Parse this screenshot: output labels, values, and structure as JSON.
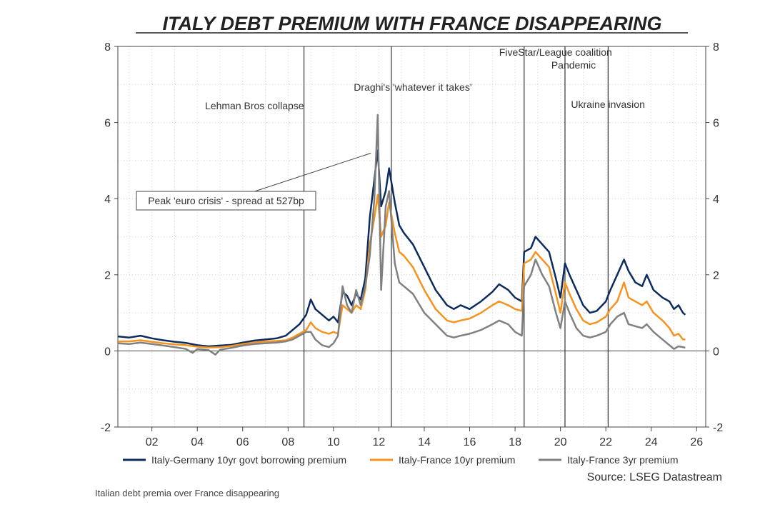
{
  "chart_data": {
    "type": "line",
    "title": "ITALY DEBT PREMIUM WITH FRANCE DISAPPEARING",
    "source": "Source: LSEG Datastream",
    "ylim": [
      -2,
      8
    ],
    "yticks": [
      -2,
      0,
      2,
      4,
      6,
      8
    ],
    "xlim": [
      2000.5,
      2026.4
    ],
    "xticks": [
      2002,
      2004,
      2006,
      2008,
      2010,
      2012,
      2014,
      2016,
      2018,
      2020,
      2022,
      2024,
      2026
    ],
    "xtick_labels": [
      "02",
      "04",
      "06",
      "08",
      "10",
      "12",
      "14",
      "16",
      "18",
      "20",
      "22",
      "24",
      "26"
    ],
    "grid": true,
    "events": [
      {
        "label": "Lehman Bros collapse",
        "x": 2008.7
      },
      {
        "label": "Draghi's 'whatever it takes'",
        "x": 2012.55
      },
      {
        "label": "FiveStar/League coalition",
        "x": 2018.4
      },
      {
        "label": "Pandemic",
        "x": 2020.2
      },
      {
        "label": "Ukraine invasion",
        "x": 2022.1
      }
    ],
    "callout": {
      "label": "Peak 'euro crisis' - spread at 527bp",
      "x": 2011.9,
      "y": 5.27
    },
    "series": [
      {
        "name": "Italy-Germany 10yr govt borrowing premium",
        "color": "#0d2c5e",
        "points": [
          [
            2000.5,
            0.38
          ],
          [
            2001.0,
            0.35
          ],
          [
            2001.5,
            0.4
          ],
          [
            2002.0,
            0.33
          ],
          [
            2002.5,
            0.28
          ],
          [
            2003.0,
            0.24
          ],
          [
            2003.5,
            0.21
          ],
          [
            2004.0,
            0.15
          ],
          [
            2004.5,
            0.12
          ],
          [
            2005.0,
            0.14
          ],
          [
            2005.5,
            0.16
          ],
          [
            2006.0,
            0.22
          ],
          [
            2006.5,
            0.27
          ],
          [
            2007.0,
            0.3
          ],
          [
            2007.5,
            0.33
          ],
          [
            2007.9,
            0.4
          ],
          [
            2008.2,
            0.55
          ],
          [
            2008.5,
            0.7
          ],
          [
            2008.8,
            0.95
          ],
          [
            2009.0,
            1.35
          ],
          [
            2009.2,
            1.1
          ],
          [
            2009.5,
            0.95
          ],
          [
            2009.8,
            0.8
          ],
          [
            2010.0,
            0.9
          ],
          [
            2010.2,
            0.75
          ],
          [
            2010.4,
            1.55
          ],
          [
            2010.6,
            1.45
          ],
          [
            2010.8,
            1.2
          ],
          [
            2011.0,
            1.5
          ],
          [
            2011.2,
            1.35
          ],
          [
            2011.4,
            1.9
          ],
          [
            2011.6,
            3.5
          ],
          [
            2011.8,
            4.5
          ],
          [
            2011.95,
            5.27
          ],
          [
            2012.1,
            3.8
          ],
          [
            2012.3,
            4.2
          ],
          [
            2012.45,
            4.8
          ],
          [
            2012.7,
            3.9
          ],
          [
            2012.9,
            3.3
          ],
          [
            2013.1,
            3.1
          ],
          [
            2013.5,
            2.8
          ],
          [
            2014.0,
            2.2
          ],
          [
            2014.5,
            1.6
          ],
          [
            2015.0,
            1.2
          ],
          [
            2015.3,
            1.1
          ],
          [
            2015.6,
            1.2
          ],
          [
            2016.0,
            1.1
          ],
          [
            2016.5,
            1.3
          ],
          [
            2017.0,
            1.55
          ],
          [
            2017.3,
            1.75
          ],
          [
            2017.7,
            1.6
          ],
          [
            2018.0,
            1.4
          ],
          [
            2018.3,
            1.3
          ],
          [
            2018.4,
            2.6
          ],
          [
            2018.7,
            2.7
          ],
          [
            2018.9,
            3.0
          ],
          [
            2019.2,
            2.8
          ],
          [
            2019.5,
            2.6
          ],
          [
            2019.8,
            1.9
          ],
          [
            2020.0,
            1.4
          ],
          [
            2020.2,
            2.3
          ],
          [
            2020.4,
            2.0
          ],
          [
            2020.7,
            1.6
          ],
          [
            2021.0,
            1.2
          ],
          [
            2021.3,
            1.0
          ],
          [
            2021.6,
            1.05
          ],
          [
            2022.0,
            1.3
          ],
          [
            2022.2,
            1.6
          ],
          [
            2022.5,
            2.0
          ],
          [
            2022.8,
            2.4
          ],
          [
            2023.0,
            2.1
          ],
          [
            2023.3,
            1.8
          ],
          [
            2023.6,
            1.7
          ],
          [
            2023.8,
            2.0
          ],
          [
            2024.1,
            1.6
          ],
          [
            2024.5,
            1.4
          ],
          [
            2024.8,
            1.3
          ],
          [
            2025.0,
            1.1
          ],
          [
            2025.2,
            1.2
          ],
          [
            2025.4,
            1.0
          ],
          [
            2025.5,
            0.95
          ]
        ]
      },
      {
        "name": "Italy-France 10yr premium",
        "color": "#f5931e",
        "points": [
          [
            2000.5,
            0.25
          ],
          [
            2001.0,
            0.25
          ],
          [
            2001.5,
            0.28
          ],
          [
            2002.0,
            0.24
          ],
          [
            2002.5,
            0.2
          ],
          [
            2003.0,
            0.17
          ],
          [
            2003.5,
            0.15
          ],
          [
            2004.0,
            0.11
          ],
          [
            2004.5,
            0.09
          ],
          [
            2005.0,
            0.1
          ],
          [
            2005.5,
            0.13
          ],
          [
            2006.0,
            0.18
          ],
          [
            2006.5,
            0.22
          ],
          [
            2007.0,
            0.25
          ],
          [
            2007.5,
            0.26
          ],
          [
            2007.9,
            0.28
          ],
          [
            2008.2,
            0.35
          ],
          [
            2008.5,
            0.45
          ],
          [
            2008.8,
            0.55
          ],
          [
            2009.0,
            0.75
          ],
          [
            2009.2,
            0.6
          ],
          [
            2009.5,
            0.5
          ],
          [
            2009.8,
            0.45
          ],
          [
            2010.0,
            0.5
          ],
          [
            2010.2,
            0.45
          ],
          [
            2010.4,
            1.2
          ],
          [
            2010.6,
            1.1
          ],
          [
            2010.8,
            1.0
          ],
          [
            2011.0,
            1.2
          ],
          [
            2011.2,
            1.1
          ],
          [
            2011.4,
            1.6
          ],
          [
            2011.6,
            2.8
          ],
          [
            2011.8,
            3.5
          ],
          [
            2011.95,
            4.1
          ],
          [
            2012.1,
            3.0
          ],
          [
            2012.3,
            3.3
          ],
          [
            2012.45,
            3.9
          ],
          [
            2012.7,
            3.1
          ],
          [
            2012.9,
            2.6
          ],
          [
            2013.1,
            2.5
          ],
          [
            2013.5,
            2.2
          ],
          [
            2014.0,
            1.6
          ],
          [
            2014.5,
            1.1
          ],
          [
            2015.0,
            0.8
          ],
          [
            2015.3,
            0.75
          ],
          [
            2015.6,
            0.8
          ],
          [
            2016.0,
            0.85
          ],
          [
            2016.5,
            1.0
          ],
          [
            2017.0,
            1.2
          ],
          [
            2017.3,
            1.3
          ],
          [
            2017.7,
            1.2
          ],
          [
            2018.0,
            1.1
          ],
          [
            2018.3,
            1.05
          ],
          [
            2018.4,
            2.3
          ],
          [
            2018.7,
            2.4
          ],
          [
            2018.9,
            2.6
          ],
          [
            2019.2,
            2.4
          ],
          [
            2019.5,
            2.2
          ],
          [
            2019.8,
            1.5
          ],
          [
            2020.0,
            1.0
          ],
          [
            2020.2,
            1.8
          ],
          [
            2020.4,
            1.5
          ],
          [
            2020.7,
            1.1
          ],
          [
            2021.0,
            0.8
          ],
          [
            2021.3,
            0.7
          ],
          [
            2021.6,
            0.75
          ],
          [
            2022.0,
            0.9
          ],
          [
            2022.2,
            1.1
          ],
          [
            2022.5,
            1.3
          ],
          [
            2022.8,
            1.8
          ],
          [
            2023.0,
            1.4
          ],
          [
            2023.3,
            1.3
          ],
          [
            2023.6,
            1.2
          ],
          [
            2023.8,
            1.3
          ],
          [
            2024.1,
            1.0
          ],
          [
            2024.5,
            0.8
          ],
          [
            2024.8,
            0.6
          ],
          [
            2025.0,
            0.4
          ],
          [
            2025.2,
            0.45
          ],
          [
            2025.4,
            0.3
          ],
          [
            2025.5,
            0.3
          ]
        ]
      },
      {
        "name": "Italy-France 3yr premium",
        "color": "#808080",
        "points": [
          [
            2000.5,
            0.2
          ],
          [
            2001.0,
            0.18
          ],
          [
            2001.5,
            0.22
          ],
          [
            2002.0,
            0.18
          ],
          [
            2002.5,
            0.14
          ],
          [
            2003.0,
            0.1
          ],
          [
            2003.5,
            0.05
          ],
          [
            2003.8,
            -0.05
          ],
          [
            2004.0,
            0.05
          ],
          [
            2004.5,
            0.02
          ],
          [
            2004.8,
            -0.1
          ],
          [
            2005.0,
            0.03
          ],
          [
            2005.5,
            0.08
          ],
          [
            2006.0,
            0.14
          ],
          [
            2006.5,
            0.18
          ],
          [
            2007.0,
            0.2
          ],
          [
            2007.5,
            0.22
          ],
          [
            2007.9,
            0.25
          ],
          [
            2008.2,
            0.3
          ],
          [
            2008.5,
            0.4
          ],
          [
            2008.8,
            0.5
          ],
          [
            2009.0,
            0.5
          ],
          [
            2009.2,
            0.3
          ],
          [
            2009.5,
            0.15
          ],
          [
            2009.8,
            0.1
          ],
          [
            2010.0,
            0.2
          ],
          [
            2010.2,
            0.4
          ],
          [
            2010.4,
            1.7
          ],
          [
            2010.6,
            1.2
          ],
          [
            2010.8,
            1.0
          ],
          [
            2011.0,
            1.6
          ],
          [
            2011.2,
            1.2
          ],
          [
            2011.4,
            1.7
          ],
          [
            2011.6,
            2.5
          ],
          [
            2011.8,
            4.0
          ],
          [
            2011.95,
            6.2
          ],
          [
            2012.1,
            1.6
          ],
          [
            2012.3,
            3.8
          ],
          [
            2012.45,
            4.2
          ],
          [
            2012.7,
            2.3
          ],
          [
            2012.9,
            1.8
          ],
          [
            2013.1,
            1.7
          ],
          [
            2013.5,
            1.5
          ],
          [
            2014.0,
            1.0
          ],
          [
            2014.5,
            0.7
          ],
          [
            2015.0,
            0.4
          ],
          [
            2015.3,
            0.35
          ],
          [
            2015.6,
            0.4
          ],
          [
            2016.0,
            0.45
          ],
          [
            2016.5,
            0.55
          ],
          [
            2017.0,
            0.7
          ],
          [
            2017.3,
            0.8
          ],
          [
            2017.7,
            0.7
          ],
          [
            2018.0,
            0.5
          ],
          [
            2018.3,
            0.4
          ],
          [
            2018.4,
            1.7
          ],
          [
            2018.7,
            2.0
          ],
          [
            2018.9,
            2.4
          ],
          [
            2019.2,
            2.0
          ],
          [
            2019.5,
            1.7
          ],
          [
            2019.8,
            1.0
          ],
          [
            2020.0,
            0.6
          ],
          [
            2020.2,
            1.3
          ],
          [
            2020.4,
            1.0
          ],
          [
            2020.7,
            0.6
          ],
          [
            2021.0,
            0.4
          ],
          [
            2021.3,
            0.35
          ],
          [
            2021.6,
            0.4
          ],
          [
            2022.0,
            0.5
          ],
          [
            2022.2,
            0.7
          ],
          [
            2022.5,
            0.9
          ],
          [
            2022.8,
            1.0
          ],
          [
            2023.0,
            0.7
          ],
          [
            2023.3,
            0.65
          ],
          [
            2023.6,
            0.6
          ],
          [
            2023.8,
            0.7
          ],
          [
            2024.1,
            0.5
          ],
          [
            2024.5,
            0.3
          ],
          [
            2024.8,
            0.15
          ],
          [
            2025.0,
            0.05
          ],
          [
            2025.2,
            0.12
          ],
          [
            2025.4,
            0.1
          ],
          [
            2025.5,
            0.08
          ]
        ]
      }
    ]
  },
  "caption": "Italian debt premia over France disappearing"
}
